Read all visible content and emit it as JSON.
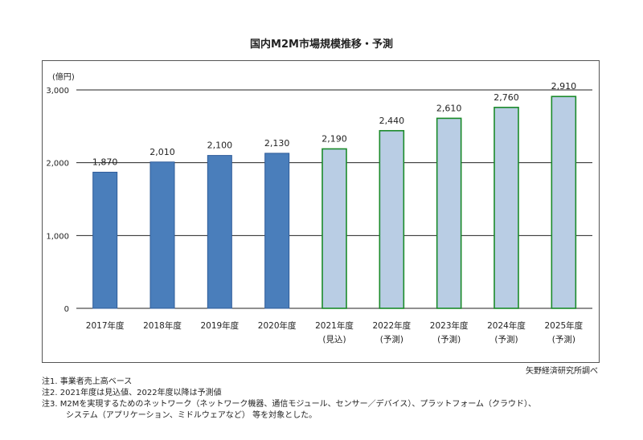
{
  "chart_data": {
    "type": "bar",
    "title": "国内M2M市場規模推移・予測",
    "unit_label": "(億円)",
    "categories": [
      "2017年度",
      "2018年度",
      "2019年度",
      "2020年度",
      "2021年度",
      "2022年度",
      "2023年度",
      "2024年度",
      "2025年度"
    ],
    "sublabels": [
      "",
      "",
      "",
      "",
      "(見込)",
      "(予測)",
      "(予測)",
      "(予測)",
      "(予測)"
    ],
    "values": [
      1870,
      2010,
      2100,
      2130,
      2190,
      2440,
      2610,
      2760,
      2910
    ],
    "value_labels": [
      "1,870",
      "2,010",
      "2,100",
      "2,130",
      "2,190",
      "2,440",
      "2,610",
      "2,760",
      "2,910"
    ],
    "bar_kind": [
      "actual",
      "actual",
      "actual",
      "actual",
      "estimate",
      "forecast",
      "forecast",
      "forecast",
      "forecast"
    ],
    "ylim": [
      0,
      3000
    ],
    "yticks": [
      0,
      1000,
      2000,
      3000
    ],
    "ytick_labels": [
      "0",
      "1,000",
      "2,000",
      "3,000"
    ],
    "grid": true,
    "legend": "none",
    "colors": {
      "actual_fill": "#4a7ebb",
      "actual_stroke": "#2f5c9a",
      "projected_fill": "#b9cde4",
      "projected_stroke": "#1a8a2a",
      "grid": "#222222"
    }
  },
  "source": "矢野経済研究所調べ",
  "notes": [
    "注1.  事業者売上高ベース",
    "注2.  2021年度は見込値、2022年度以降は予測値",
    "注3.  M2Mを実現するためのネットワーク（ネットワーク機器、通信モジュール、センサー／デバイス）、プラットフォーム（クラウド）、",
    "システム（アプリケーション、ミドルウェアなど） 等を対象とした。"
  ]
}
